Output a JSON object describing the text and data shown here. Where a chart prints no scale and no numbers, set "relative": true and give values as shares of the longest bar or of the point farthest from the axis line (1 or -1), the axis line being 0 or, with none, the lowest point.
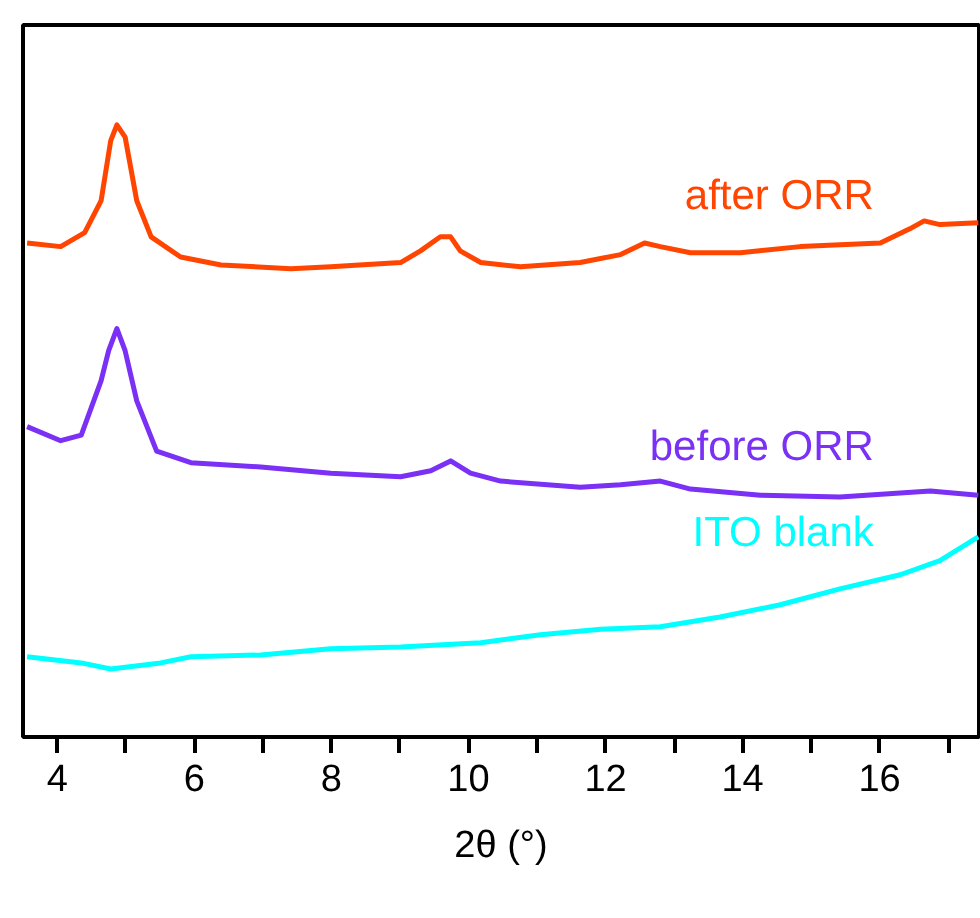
{
  "chart_data": {
    "type": "line",
    "xlabel": "2θ (°)",
    "relative": true,
    "grid": false,
    "tick_labels": "x",
    "marker": "none",
    "line_style": "solid",
    "xlim": [
      3.5,
      17.45
    ],
    "xticks": [
      4,
      {
        "value": 5,
        "label": null
      },
      6,
      {
        "value": 7,
        "label": null
      },
      8,
      {
        "value": 9,
        "label": null
      },
      10,
      {
        "value": 11,
        "label": null
      },
      12,
      {
        "value": 13,
        "label": null
      },
      14,
      {
        "value": 15,
        "label": null
      },
      16,
      {
        "value": 17,
        "label": null
      }
    ],
    "series": [
      {
        "name": "after ORR",
        "color": "#ff4500",
        "x": [
          3.56,
          4.05,
          4.4,
          4.64,
          4.78,
          4.87,
          4.99,
          5.16,
          5.37,
          5.8,
          6.39,
          7.41,
          7.99,
          9.01,
          9.3,
          9.59,
          9.74,
          9.88,
          10.18,
          10.76,
          11.63,
          12.22,
          12.57,
          12.8,
          13.24,
          13.97,
          14.84,
          16.01,
          16.44,
          16.65,
          16.88,
          17.44
        ],
        "values": [
          0.807,
          0.801,
          0.824,
          0.876,
          0.974,
          1.0,
          0.98,
          0.876,
          0.817,
          0.784,
          0.771,
          0.765,
          0.768,
          0.775,
          0.794,
          0.817,
          0.817,
          0.794,
          0.775,
          0.768,
          0.775,
          0.788,
          0.807,
          0.801,
          0.791,
          0.791,
          0.801,
          0.807,
          0.83,
          0.843,
          0.837,
          0.84
        ]
      },
      {
        "name": "before ORR",
        "color": "#7a30f5",
        "x": [
          3.56,
          4.05,
          4.35,
          4.64,
          4.75,
          4.87,
          4.99,
          5.16,
          5.45,
          5.95,
          6.97,
          7.99,
          9.01,
          9.45,
          9.74,
          10.03,
          10.47,
          11.63,
          12.22,
          12.8,
          13.24,
          14.26,
          15.42,
          16.74,
          17.44
        ],
        "values": [
          0.507,
          0.484,
          0.493,
          0.582,
          0.631,
          0.667,
          0.631,
          0.549,
          0.467,
          0.448,
          0.441,
          0.431,
          0.425,
          0.435,
          0.451,
          0.431,
          0.418,
          0.408,
          0.412,
          0.418,
          0.405,
          0.395,
          0.392,
          0.402,
          0.395
        ]
      },
      {
        "name": "ITO blank",
        "color": "#00ffff",
        "x": [
          3.56,
          4.35,
          4.78,
          5.51,
          5.95,
          6.97,
          7.99,
          9.01,
          10.18,
          11.05,
          11.93,
          12.8,
          13.67,
          14.55,
          15.42,
          16.3,
          16.88,
          17.44
        ],
        "values": [
          0.131,
          0.121,
          0.111,
          0.121,
          0.131,
          0.134,
          0.144,
          0.147,
          0.154,
          0.167,
          0.176,
          0.18,
          0.196,
          0.216,
          0.242,
          0.265,
          0.288,
          0.327
        ]
      }
    ]
  }
}
